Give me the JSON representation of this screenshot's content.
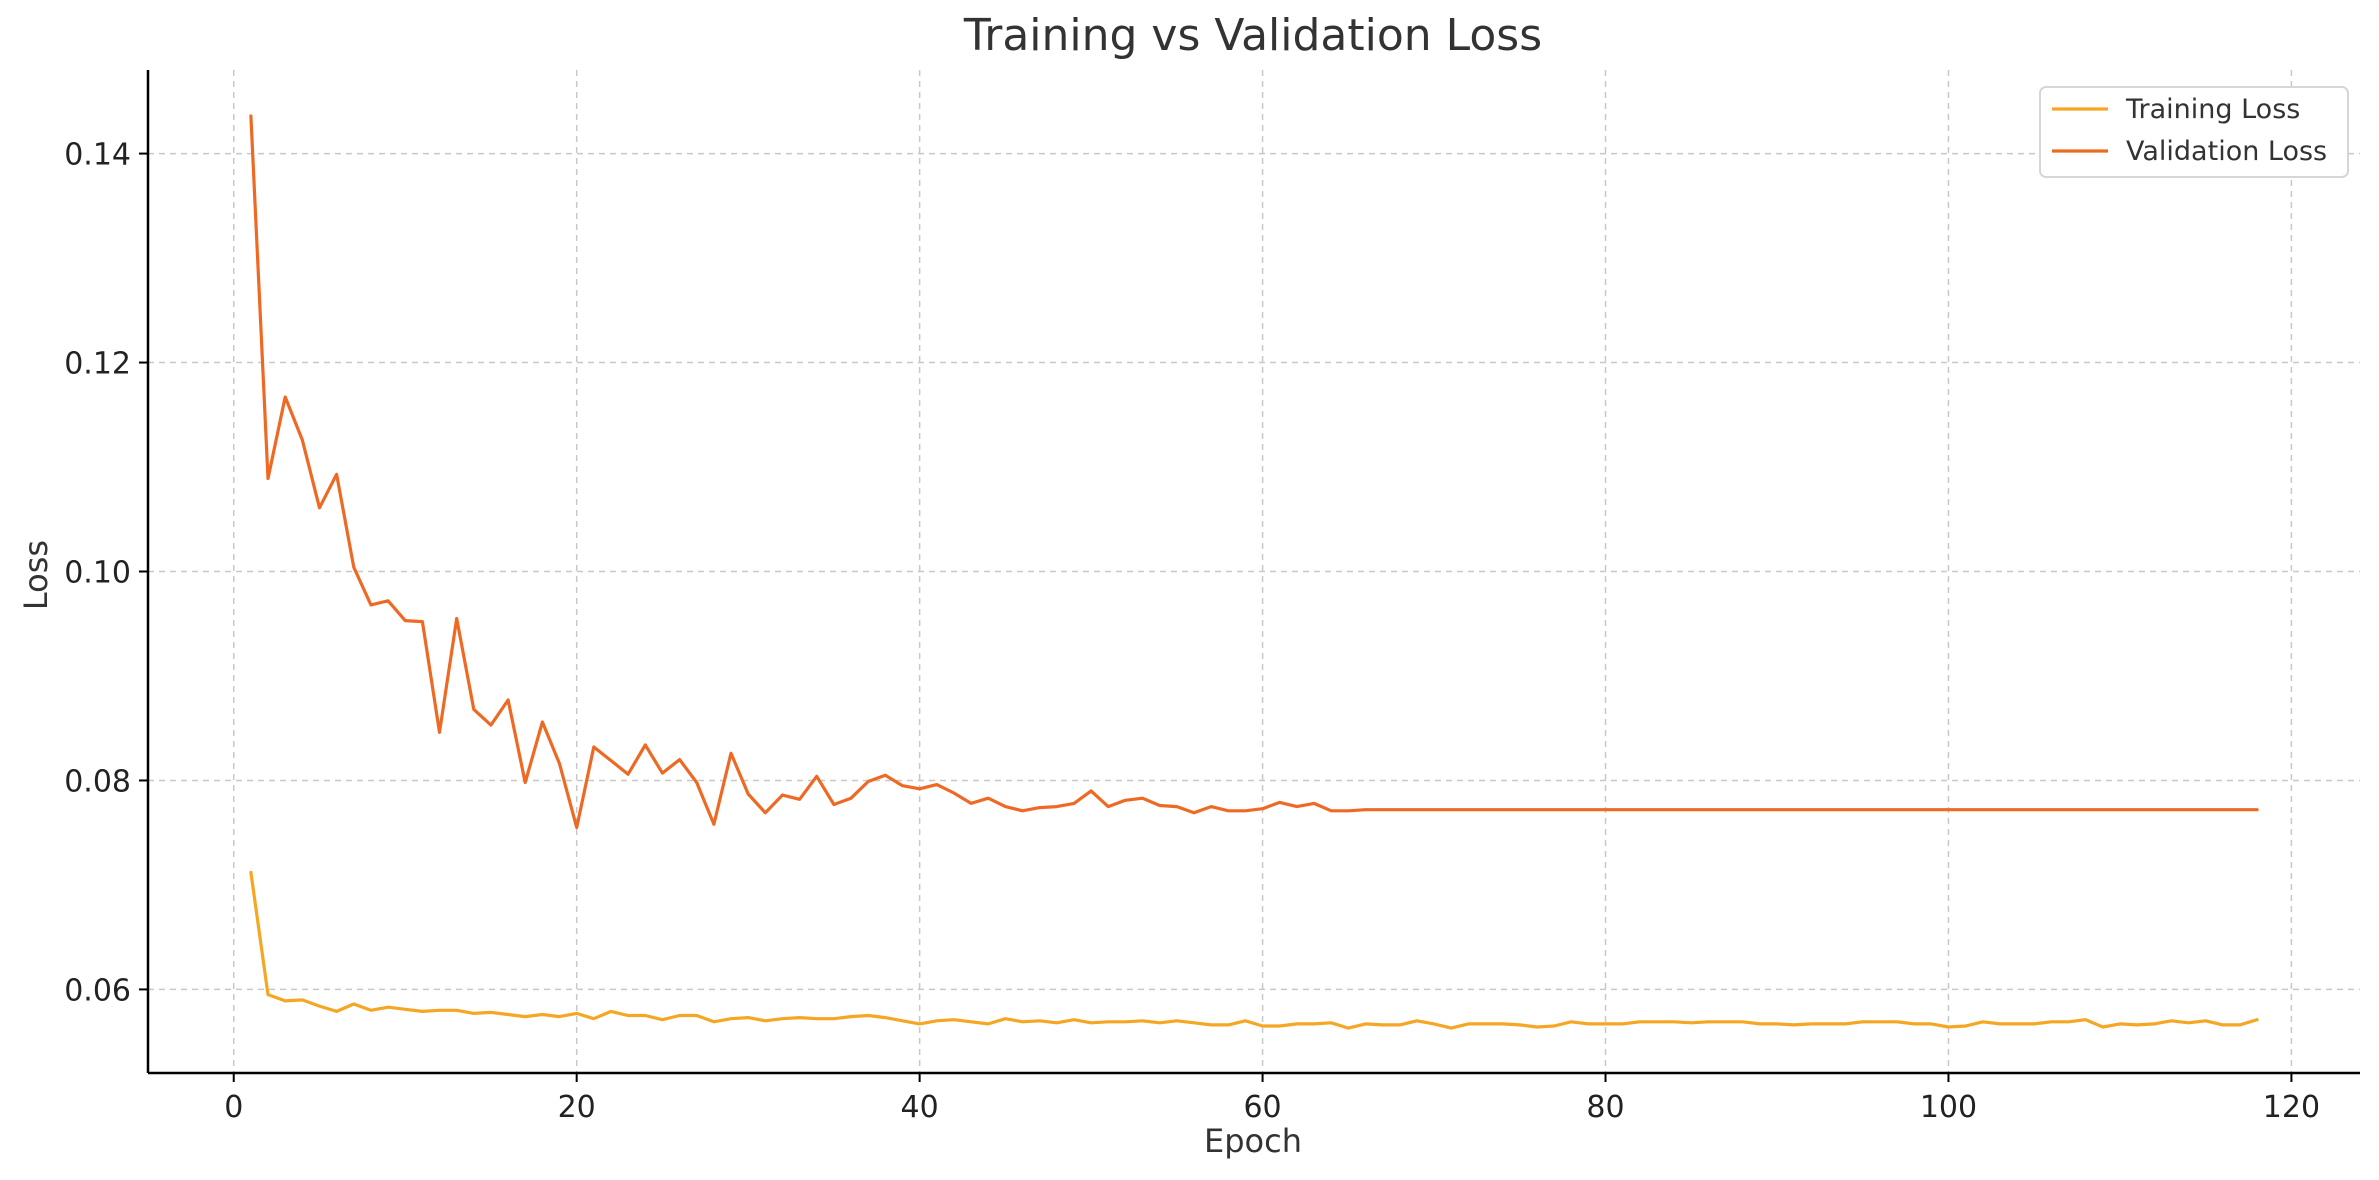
{
  "chart_data": {
    "type": "line",
    "title": "Training vs Validation Loss",
    "xlabel": "Epoch",
    "ylabel": "Loss",
    "xlim": [
      -5,
      124
    ],
    "ylim": [
      0.052,
      0.148
    ],
    "xticks": [
      0,
      20,
      40,
      60,
      80,
      100,
      120
    ],
    "yticks": [
      0.06,
      0.08,
      0.1,
      0.12,
      0.14
    ],
    "ytick_labels": [
      "0.06",
      "0.08",
      "0.10",
      "0.12",
      "0.14"
    ],
    "grid": true,
    "legend_position": "top-right",
    "x": [
      1,
      2,
      3,
      4,
      5,
      6,
      7,
      8,
      9,
      10,
      11,
      12,
      13,
      14,
      15,
      16,
      17,
      18,
      19,
      20,
      21,
      22,
      23,
      24,
      25,
      26,
      27,
      28,
      29,
      30,
      31,
      32,
      33,
      34,
      35,
      36,
      37,
      38,
      39,
      40,
      41,
      42,
      43,
      44,
      45,
      46,
      47,
      48,
      49,
      50,
      51,
      52,
      53,
      54,
      55,
      56,
      57,
      58,
      59,
      60,
      61,
      62,
      63,
      64,
      65,
      66,
      67,
      68,
      69,
      70,
      71,
      72,
      73,
      74,
      75,
      76,
      77,
      78,
      79,
      80,
      81,
      82,
      83,
      84,
      85,
      86,
      87,
      88,
      89,
      90,
      91,
      92,
      93,
      94,
      95,
      96,
      97,
      98,
      99,
      100,
      101,
      102,
      103,
      104,
      105,
      106,
      107,
      108,
      109,
      110,
      111,
      112,
      113,
      114,
      115,
      116,
      117,
      118
    ],
    "series": [
      {
        "name": "Training Loss",
        "color": "#f5a623",
        "values": [
          0.0712,
          0.0595,
          0.0589,
          0.059,
          0.0584,
          0.0579,
          0.0586,
          0.058,
          0.0583,
          0.0581,
          0.0579,
          0.058,
          0.058,
          0.0577,
          0.0578,
          0.0576,
          0.0574,
          0.0576,
          0.0574,
          0.0577,
          0.0572,
          0.0579,
          0.0575,
          0.0575,
          0.0571,
          0.0575,
          0.0575,
          0.0569,
          0.0572,
          0.0573,
          0.057,
          0.0572,
          0.0573,
          0.0572,
          0.0572,
          0.0574,
          0.0575,
          0.0573,
          0.057,
          0.0567,
          0.057,
          0.0571,
          0.0569,
          0.0567,
          0.0572,
          0.0569,
          0.057,
          0.0568,
          0.0571,
          0.0568,
          0.0569,
          0.0569,
          0.057,
          0.0568,
          0.057,
          0.0568,
          0.0566,
          0.0566,
          0.057,
          0.0565,
          0.0565,
          0.0567,
          0.0567,
          0.0568,
          0.0563,
          0.0567,
          0.0566,
          0.0566,
          0.057,
          0.0567,
          0.0563,
          0.0567,
          0.0567,
          0.0567,
          0.0566,
          0.0564,
          0.0565,
          0.0569,
          0.0567,
          0.0567,
          0.0567,
          0.0569,
          0.0569,
          0.0569,
          0.0568,
          0.0569,
          0.0569,
          0.0569,
          0.0567,
          0.0567,
          0.0566,
          0.0567,
          0.0567,
          0.0567,
          0.0569,
          0.0569,
          0.0569,
          0.0567,
          0.0567,
          0.0564,
          0.0565,
          0.0569,
          0.0567,
          0.0567,
          0.0567,
          0.0569,
          0.0569,
          0.0571,
          0.0564,
          0.0567,
          0.0566,
          0.0567,
          0.057,
          0.0568,
          0.057,
          0.0566,
          0.0566,
          0.0571
        ]
      },
      {
        "name": "Validation Loss",
        "color": "#ee6a24",
        "values": [
          0.1436,
          0.1089,
          0.1167,
          0.1126,
          0.1061,
          0.1093,
          0.1004,
          0.0968,
          0.0972,
          0.0953,
          0.0952,
          0.0846,
          0.0955,
          0.0868,
          0.0853,
          0.0877,
          0.0798,
          0.0856,
          0.0816,
          0.0755,
          0.0832,
          0.0819,
          0.0806,
          0.0834,
          0.0807,
          0.082,
          0.0798,
          0.0758,
          0.0826,
          0.0787,
          0.0769,
          0.0786,
          0.0782,
          0.0804,
          0.0777,
          0.0783,
          0.0799,
          0.0805,
          0.0795,
          0.0792,
          0.0796,
          0.0788,
          0.0778,
          0.0783,
          0.0775,
          0.0771,
          0.0774,
          0.0775,
          0.0778,
          0.079,
          0.0775,
          0.0781,
          0.0783,
          0.0776,
          0.0775,
          0.0769,
          0.0775,
          0.0771,
          0.0771,
          0.0773,
          0.0779,
          0.0775,
          0.0778,
          0.0771,
          0.0771,
          0.0772,
          0.0772,
          0.0772,
          0.0772,
          0.0772,
          0.0772,
          0.0772,
          0.0772,
          0.0772,
          0.0772,
          0.0772,
          0.0772,
          0.0772,
          0.0772,
          0.0772,
          0.0772,
          0.0772,
          0.0772,
          0.0772,
          0.0772,
          0.0772,
          0.0772,
          0.0772,
          0.0772,
          0.0772,
          0.0772,
          0.0772,
          0.0772,
          0.0772,
          0.0772,
          0.0772,
          0.0772,
          0.0772,
          0.0772,
          0.0772,
          0.0772,
          0.0772,
          0.0772,
          0.0772,
          0.0772,
          0.0772,
          0.0772,
          0.0772,
          0.0772,
          0.0772,
          0.0772,
          0.0772,
          0.0772,
          0.0772,
          0.0772,
          0.0772,
          0.0772,
          0.0772
        ]
      }
    ]
  }
}
